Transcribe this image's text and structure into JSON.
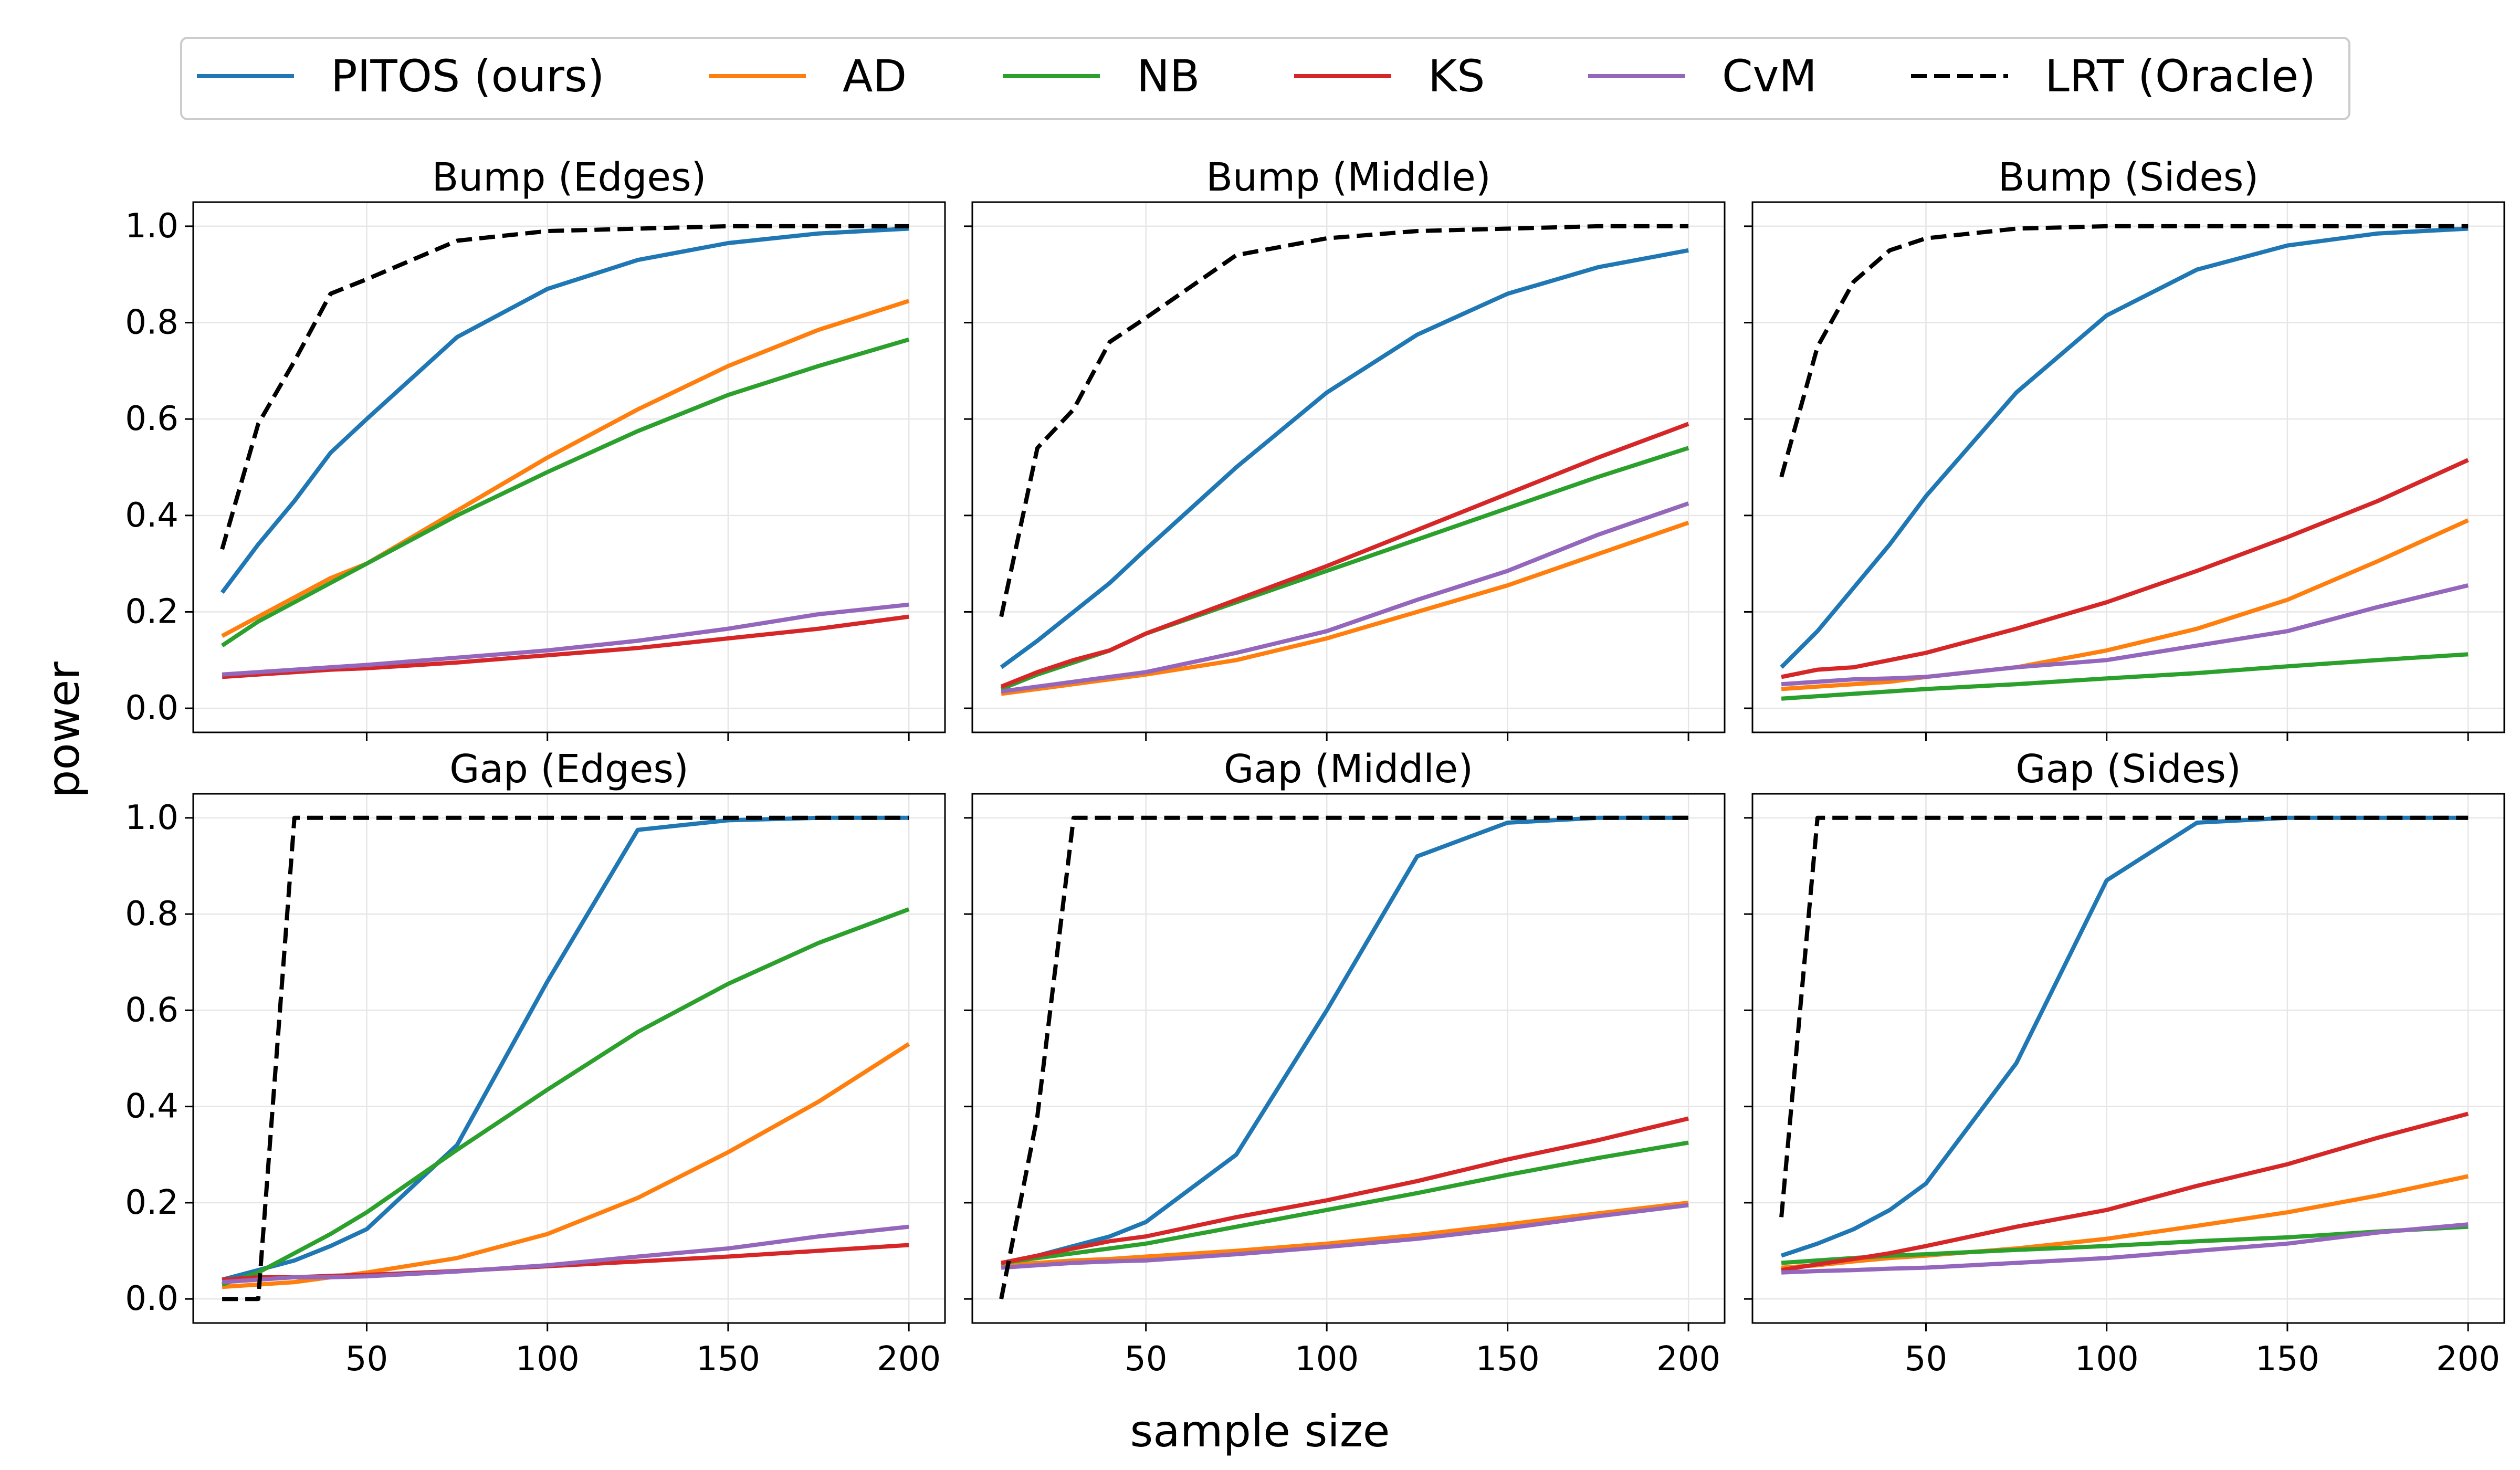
{
  "figure": {
    "ylabel": "power",
    "xlabel": "sample size"
  },
  "legend": [
    {
      "name": "PITOS (ours)",
      "color": "#1f77b4",
      "dash": false
    },
    {
      "name": "AD",
      "color": "#ff7f0e",
      "dash": false
    },
    {
      "name": "NB",
      "color": "#2ca02c",
      "dash": false
    },
    {
      "name": "KS",
      "color": "#d62728",
      "dash": false
    },
    {
      "name": "CvM",
      "color": "#9467bd",
      "dash": false
    },
    {
      "name": "LRT (Oracle)",
      "color": "#000000",
      "dash": true
    }
  ],
  "chart_data": [
    {
      "type": "line",
      "title": "Bump (Edges)",
      "x": [
        10,
        20,
        30,
        40,
        50,
        75,
        100,
        125,
        150,
        175,
        200
      ],
      "xticks": [
        50,
        100,
        150,
        200
      ],
      "yticks": [
        "0.0",
        "0.2",
        "0.4",
        "0.6",
        "0.8",
        "1.0"
      ],
      "xlim": [
        2,
        210
      ],
      "ylim": [
        -0.05,
        1.05
      ],
      "series": [
        {
          "name": "PITOS (ours)",
          "values": [
            0.24,
            0.34,
            0.43,
            0.53,
            0.6,
            0.77,
            0.87,
            0.93,
            0.965,
            0.985,
            0.995
          ]
        },
        {
          "name": "AD",
          "values": [
            0.15,
            0.19,
            0.23,
            0.27,
            0.3,
            0.41,
            0.52,
            0.62,
            0.71,
            0.785,
            0.845
          ]
        },
        {
          "name": "NB",
          "values": [
            0.13,
            0.18,
            0.22,
            0.26,
            0.3,
            0.4,
            0.49,
            0.575,
            0.65,
            0.71,
            0.765
          ]
        },
        {
          "name": "KS",
          "values": [
            0.065,
            0.07,
            0.075,
            0.08,
            0.083,
            0.095,
            0.11,
            0.125,
            0.145,
            0.165,
            0.19
          ]
        },
        {
          "name": "CvM",
          "values": [
            0.07,
            0.075,
            0.08,
            0.085,
            0.09,
            0.105,
            0.12,
            0.14,
            0.165,
            0.195,
            0.215
          ]
        },
        {
          "name": "LRT (Oracle)",
          "values": [
            0.33,
            0.59,
            0.72,
            0.86,
            0.89,
            0.97,
            0.99,
            0.995,
            1.0,
            1.0,
            1.0
          ]
        }
      ]
    },
    {
      "type": "line",
      "title": "Bump (Middle)",
      "x": [
        10,
        20,
        30,
        40,
        50,
        75,
        100,
        125,
        150,
        175,
        200
      ],
      "xticks": [
        50,
        100,
        150,
        200
      ],
      "yticks": [
        "0.0",
        "0.2",
        "0.4",
        "0.6",
        "0.8",
        "1.0"
      ],
      "xlim": [
        2,
        210
      ],
      "ylim": [
        -0.05,
        1.05
      ],
      "series": [
        {
          "name": "PITOS (ours)",
          "values": [
            0.085,
            0.14,
            0.2,
            0.26,
            0.33,
            0.5,
            0.655,
            0.775,
            0.86,
            0.915,
            0.95
          ]
        },
        {
          "name": "AD",
          "values": [
            0.03,
            0.04,
            0.05,
            0.06,
            0.07,
            0.1,
            0.145,
            0.2,
            0.255,
            0.32,
            0.385
          ]
        },
        {
          "name": "NB",
          "values": [
            0.04,
            0.07,
            0.095,
            0.12,
            0.155,
            0.22,
            0.285,
            0.35,
            0.415,
            0.48,
            0.54
          ]
        },
        {
          "name": "KS",
          "values": [
            0.045,
            0.075,
            0.1,
            0.12,
            0.155,
            0.225,
            0.295,
            0.37,
            0.445,
            0.52,
            0.59
          ]
        },
        {
          "name": "CvM",
          "values": [
            0.035,
            0.045,
            0.055,
            0.065,
            0.075,
            0.115,
            0.16,
            0.225,
            0.285,
            0.36,
            0.425
          ]
        },
        {
          "name": "LRT (Oracle)",
          "values": [
            0.19,
            0.54,
            0.62,
            0.76,
            0.81,
            0.94,
            0.975,
            0.99,
            0.995,
            1.0,
            1.0
          ]
        }
      ]
    },
    {
      "type": "line",
      "title": "Bump (Sides)",
      "x": [
        10,
        20,
        30,
        40,
        50,
        75,
        100,
        125,
        150,
        175,
        200
      ],
      "xticks": [
        50,
        100,
        150,
        200
      ],
      "yticks": [
        "0.0",
        "0.2",
        "0.4",
        "0.6",
        "0.8",
        "1.0"
      ],
      "xlim": [
        2,
        210
      ],
      "ylim": [
        -0.05,
        1.05
      ],
      "series": [
        {
          "name": "PITOS (ours)",
          "values": [
            0.085,
            0.16,
            0.25,
            0.34,
            0.44,
            0.655,
            0.815,
            0.91,
            0.96,
            0.985,
            0.995
          ]
        },
        {
          "name": "AD",
          "values": [
            0.04,
            0.045,
            0.05,
            0.055,
            0.065,
            0.085,
            0.12,
            0.165,
            0.225,
            0.305,
            0.39
          ]
        },
        {
          "name": "NB",
          "values": [
            0.02,
            0.025,
            0.03,
            0.035,
            0.04,
            0.05,
            0.062,
            0.073,
            0.087,
            0.1,
            0.112
          ]
        },
        {
          "name": "KS",
          "values": [
            0.065,
            0.08,
            0.085,
            0.1,
            0.115,
            0.165,
            0.22,
            0.285,
            0.355,
            0.43,
            0.515
          ]
        },
        {
          "name": "CvM",
          "values": [
            0.05,
            0.055,
            0.06,
            0.062,
            0.065,
            0.085,
            0.1,
            0.13,
            0.16,
            0.21,
            0.255
          ]
        },
        {
          "name": "LRT (Oracle)",
          "values": [
            0.48,
            0.75,
            0.885,
            0.95,
            0.975,
            0.995,
            1.0,
            1.0,
            1.0,
            1.0,
            1.0
          ]
        }
      ]
    },
    {
      "type": "line",
      "title": "Gap (Edges)",
      "x": [
        10,
        20,
        30,
        40,
        50,
        75,
        100,
        125,
        150,
        175,
        200
      ],
      "xticks": [
        50,
        100,
        150,
        200
      ],
      "yticks": [
        "0.0",
        "0.2",
        "0.4",
        "0.6",
        "0.8",
        "1.0"
      ],
      "xlim": [
        2,
        210
      ],
      "ylim": [
        -0.05,
        1.05
      ],
      "series": [
        {
          "name": "PITOS (ours)",
          "values": [
            0.04,
            0.06,
            0.08,
            0.11,
            0.145,
            0.32,
            0.66,
            0.975,
            0.995,
            1.0,
            1.0
          ]
        },
        {
          "name": "AD",
          "values": [
            0.025,
            0.03,
            0.035,
            0.045,
            0.055,
            0.085,
            0.135,
            0.21,
            0.305,
            0.41,
            0.53
          ]
        },
        {
          "name": "NB",
          "values": [
            0.03,
            0.055,
            0.095,
            0.135,
            0.18,
            0.31,
            0.435,
            0.555,
            0.655,
            0.74,
            0.81
          ]
        },
        {
          "name": "KS",
          "values": [
            0.04,
            0.045,
            0.045,
            0.048,
            0.05,
            0.058,
            0.068,
            0.078,
            0.088,
            0.1,
            0.112
          ]
        },
        {
          "name": "CvM",
          "values": [
            0.035,
            0.04,
            0.045,
            0.045,
            0.047,
            0.057,
            0.07,
            0.088,
            0.105,
            0.13,
            0.15
          ]
        },
        {
          "name": "LRT (Oracle)",
          "values": [
            0.0,
            0.0,
            1.0,
            1.0,
            1.0,
            1.0,
            1.0,
            1.0,
            1.0,
            1.0,
            1.0
          ]
        }
      ]
    },
    {
      "type": "line",
      "title": "Gap (Middle)",
      "x": [
        10,
        20,
        30,
        40,
        50,
        75,
        100,
        125,
        150,
        175,
        200
      ],
      "xticks": [
        50,
        100,
        150,
        200
      ],
      "yticks": [
        "0.0",
        "0.2",
        "0.4",
        "0.6",
        "0.8",
        "1.0"
      ],
      "xlim": [
        2,
        210
      ],
      "ylim": [
        -0.05,
        1.05
      ],
      "series": [
        {
          "name": "PITOS (ours)",
          "values": [
            0.07,
            0.09,
            0.11,
            0.13,
            0.16,
            0.3,
            0.6,
            0.92,
            0.99,
            1.0,
            1.0
          ]
        },
        {
          "name": "AD",
          "values": [
            0.07,
            0.075,
            0.08,
            0.083,
            0.088,
            0.1,
            0.115,
            0.133,
            0.155,
            0.178,
            0.2
          ]
        },
        {
          "name": "NB",
          "values": [
            0.075,
            0.085,
            0.095,
            0.105,
            0.115,
            0.15,
            0.185,
            0.22,
            0.258,
            0.293,
            0.325
          ]
        },
        {
          "name": "KS",
          "values": [
            0.075,
            0.09,
            0.105,
            0.12,
            0.13,
            0.17,
            0.205,
            0.245,
            0.29,
            0.33,
            0.375
          ]
        },
        {
          "name": "CvM",
          "values": [
            0.065,
            0.07,
            0.075,
            0.078,
            0.08,
            0.093,
            0.108,
            0.125,
            0.147,
            0.172,
            0.195
          ]
        },
        {
          "name": "LRT (Oracle)",
          "values": [
            0.0,
            0.38,
            1.0,
            1.0,
            1.0,
            1.0,
            1.0,
            1.0,
            1.0,
            1.0,
            1.0
          ]
        }
      ]
    },
    {
      "type": "line",
      "title": "Gap (Sides)",
      "x": [
        10,
        20,
        30,
        40,
        50,
        75,
        100,
        125,
        150,
        175,
        200
      ],
      "xticks": [
        50,
        100,
        150,
        200
      ],
      "yticks": [
        "0.0",
        "0.2",
        "0.4",
        "0.6",
        "0.8",
        "1.0"
      ],
      "xlim": [
        2,
        210
      ],
      "ylim": [
        -0.05,
        1.05
      ],
      "series": [
        {
          "name": "PITOS (ours)",
          "values": [
            0.09,
            0.115,
            0.145,
            0.185,
            0.24,
            0.49,
            0.87,
            0.99,
            1.0,
            1.0,
            1.0
          ]
        },
        {
          "name": "AD",
          "values": [
            0.065,
            0.07,
            0.078,
            0.085,
            0.09,
            0.105,
            0.125,
            0.152,
            0.18,
            0.215,
            0.255
          ]
        },
        {
          "name": "NB",
          "values": [
            0.075,
            0.08,
            0.085,
            0.09,
            0.093,
            0.102,
            0.11,
            0.12,
            0.128,
            0.14,
            0.15
          ]
        },
        {
          "name": "KS",
          "values": [
            0.06,
            0.072,
            0.083,
            0.095,
            0.11,
            0.15,
            0.185,
            0.235,
            0.28,
            0.335,
            0.385
          ]
        },
        {
          "name": "CvM",
          "values": [
            0.055,
            0.058,
            0.06,
            0.063,
            0.065,
            0.075,
            0.085,
            0.1,
            0.115,
            0.138,
            0.155
          ]
        },
        {
          "name": "LRT (Oracle)",
          "values": [
            0.17,
            1.0,
            1.0,
            1.0,
            1.0,
            1.0,
            1.0,
            1.0,
            1.0,
            1.0,
            1.0
          ]
        }
      ]
    }
  ]
}
